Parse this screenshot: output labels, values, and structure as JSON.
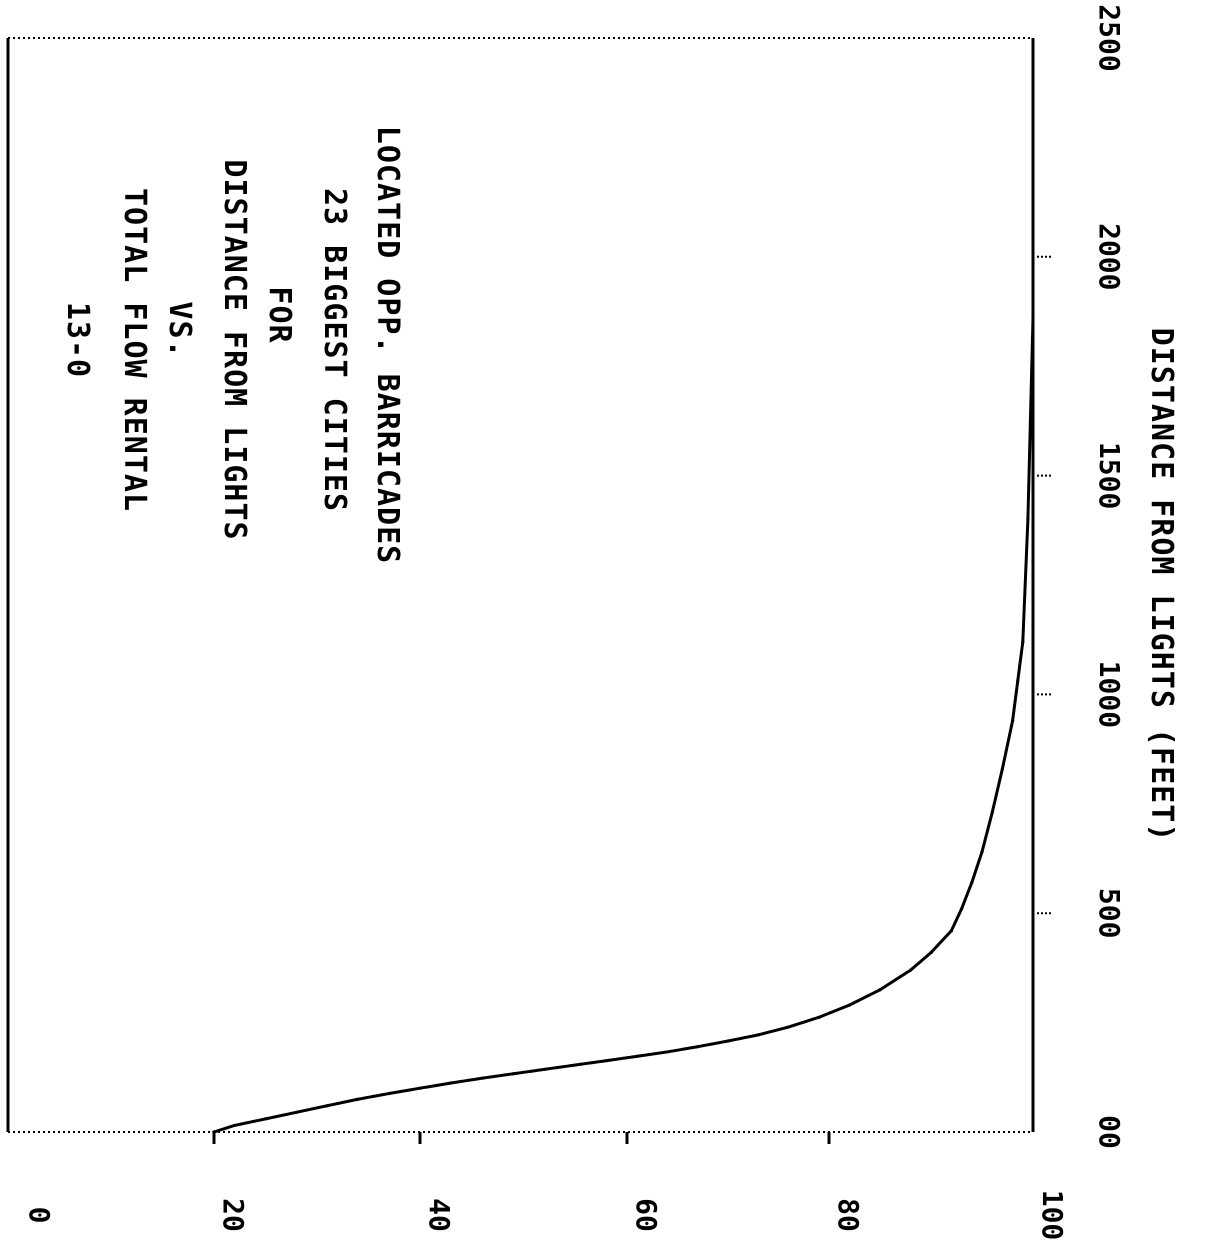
{
  "chart_data": {
    "type": "line",
    "title_lines": [
      "13-0",
      "TOTAL FLOW RENTAL",
      "VS.",
      "DISTANCE FROM LIGHTS",
      "FOR",
      "23 BIGGEST CITIES",
      "LOCATED OPP. BARRICADES"
    ],
    "xlabel": "",
    "ylabel": "DISTANCE FROM LIGHTS (FEET)",
    "x_ticks": [
      "0",
      "20",
      "40",
      "60",
      "80",
      "100"
    ],
    "y_ticks": [
      "00",
      "500",
      "1000",
      "1500",
      "2000",
      "2500"
    ],
    "xlim": [
      0,
      100
    ],
    "ylim": [
      0,
      2500
    ],
    "grid": false,
    "series": [
      {
        "x": [
          20,
          22,
          25,
          28,
          31,
          34,
          37,
          40,
          43,
          46,
          49,
          52,
          55,
          58,
          61,
          64,
          67,
          70,
          73,
          76,
          79,
          82,
          85,
          88,
          90,
          92,
          93,
          94,
          95,
          96,
          97,
          98,
          98.5,
          99,
          99.5,
          100
        ],
        "y": [
          0,
          15,
          30,
          45,
          60,
          75,
          88,
          100,
          112,
          123,
          133,
          143,
          153,
          163,
          173,
          183,
          195,
          208,
          222,
          240,
          262,
          290,
          325,
          370,
          410,
          460,
          510,
          570,
          640,
          730,
          830,
          940,
          1030,
          1120,
          1400,
          1860
        ]
      }
    ],
    "colors": {
      "line": "#000000",
      "axes": "#000000",
      "background": "#ffffff"
    }
  }
}
